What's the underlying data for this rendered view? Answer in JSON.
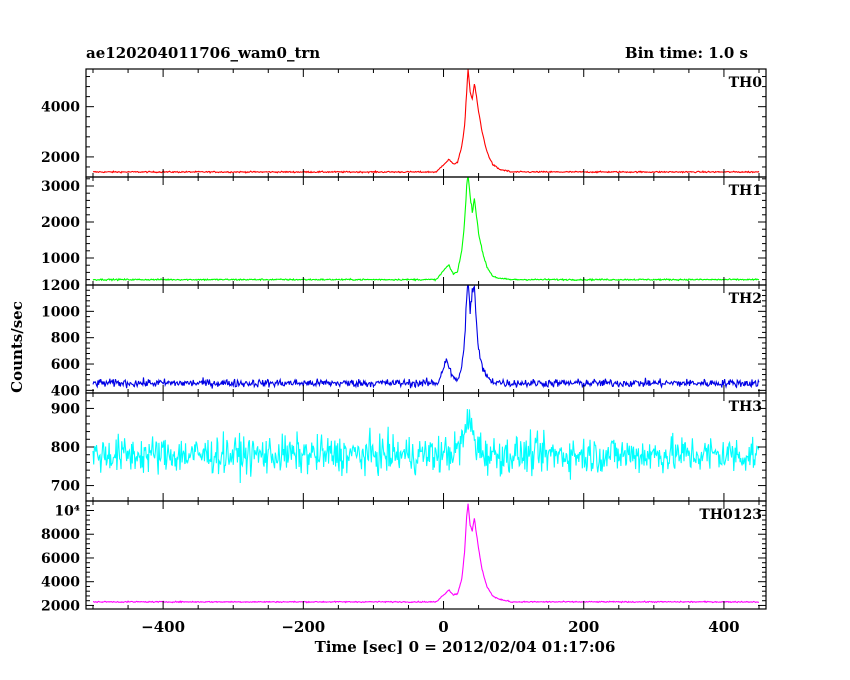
{
  "header": {
    "title": "ae120204011706_wam0_trn",
    "bin_time": "Bin time: 1.0 s"
  },
  "axes": {
    "xlabel": "Time [sec] 0 = 2012/02/04 01:17:06",
    "ylabel": "Counts/sec"
  },
  "chart_data": {
    "type": "line",
    "x_range": [
      -510,
      460
    ],
    "x_ticks": [
      -400,
      -200,
      0,
      200,
      400
    ],
    "x_tick_labels": [
      "−400",
      "−200",
      "0",
      "200",
      "400"
    ],
    "panels": [
      {
        "name": "TH0",
        "color": "#ff0000",
        "ylim": [
          1200,
          5500
        ],
        "yticks": [
          2000,
          4000
        ],
        "ytick_labels": [
          "2000",
          "4000"
        ],
        "baseline": 1400,
        "noise": 20,
        "peak_points": [
          [
            -10,
            1400
          ],
          [
            0,
            1700
          ],
          [
            8,
            1900
          ],
          [
            14,
            1700
          ],
          [
            20,
            1800
          ],
          [
            26,
            2400
          ],
          [
            30,
            3200
          ],
          [
            33,
            4600
          ],
          [
            35,
            5500
          ],
          [
            38,
            4600
          ],
          [
            41,
            4300
          ],
          [
            44,
            4900
          ],
          [
            47,
            4400
          ],
          [
            50,
            3800
          ],
          [
            55,
            3000
          ],
          [
            62,
            2200
          ],
          [
            70,
            1700
          ],
          [
            80,
            1500
          ],
          [
            95,
            1420
          ]
        ]
      },
      {
        "name": "TH1",
        "color": "#00ff00",
        "ylim": [
          250,
          3250
        ],
        "yticks": [
          1000,
          2000,
          3000
        ],
        "ytick_labels": [
          "1000",
          "2000",
          "3000"
        ],
        "baseline": 400,
        "noise": 15,
        "peak_points": [
          [
            -10,
            400
          ],
          [
            0,
            650
          ],
          [
            7,
            800
          ],
          [
            14,
            560
          ],
          [
            20,
            620
          ],
          [
            26,
            1200
          ],
          [
            30,
            2000
          ],
          [
            33,
            3000
          ],
          [
            35,
            3300
          ],
          [
            38,
            2700
          ],
          [
            41,
            2300
          ],
          [
            44,
            2650
          ],
          [
            47,
            2200
          ],
          [
            50,
            1700
          ],
          [
            55,
            1200
          ],
          [
            62,
            750
          ],
          [
            70,
            500
          ],
          [
            80,
            430
          ],
          [
            95,
            405
          ]
        ]
      },
      {
        "name": "TH2",
        "color": "#0000e6",
        "ylim": [
          380,
          1200
        ],
        "yticks": [
          400,
          600,
          800,
          1000,
          1200
        ],
        "ytick_labels": [
          "400",
          "600",
          "800",
          "1000",
          "1200"
        ],
        "baseline": 455,
        "noise": 22,
        "peak_points": [
          [
            -8,
            455
          ],
          [
            0,
            580
          ],
          [
            5,
            640
          ],
          [
            12,
            500
          ],
          [
            20,
            480
          ],
          [
            26,
            560
          ],
          [
            30,
            800
          ],
          [
            33,
            1100
          ],
          [
            35,
            1200
          ],
          [
            38,
            1000
          ],
          [
            41,
            1150
          ],
          [
            44,
            1200
          ],
          [
            47,
            900
          ],
          [
            50,
            700
          ],
          [
            55,
            580
          ],
          [
            62,
            500
          ],
          [
            70,
            470
          ],
          [
            85,
            458
          ]
        ]
      },
      {
        "name": "TH3",
        "color": "#00ffff",
        "ylim": [
          660,
          940
        ],
        "yticks": [
          700,
          800,
          900
        ],
        "ytick_labels": [
          "700",
          "800",
          "900"
        ],
        "baseline": 780,
        "noise": 35,
        "peak_points": [
          [
            -5,
            780
          ],
          [
            20,
            790
          ],
          [
            30,
            830
          ],
          [
            35,
            870
          ],
          [
            40,
            850
          ],
          [
            48,
            800
          ],
          [
            60,
            785
          ]
        ]
      },
      {
        "name": "TH0123",
        "color": "#ff00ff",
        "ylim": [
          1700,
          10800
        ],
        "yticks": [
          2000,
          4000,
          6000,
          8000,
          10000
        ],
        "ytick_labels": [
          "2000",
          "4000",
          "6000",
          "8000",
          "10⁴"
        ],
        "baseline": 2300,
        "noise": 35,
        "peak_points": [
          [
            -10,
            2300
          ],
          [
            0,
            2900
          ],
          [
            8,
            3300
          ],
          [
            14,
            2900
          ],
          [
            20,
            3000
          ],
          [
            26,
            4200
          ],
          [
            30,
            6500
          ],
          [
            33,
            9500
          ],
          [
            35,
            10600
          ],
          [
            38,
            8800
          ],
          [
            41,
            8300
          ],
          [
            44,
            9300
          ],
          [
            47,
            8000
          ],
          [
            50,
            6800
          ],
          [
            55,
            5000
          ],
          [
            62,
            3600
          ],
          [
            70,
            2800
          ],
          [
            80,
            2500
          ],
          [
            95,
            2350
          ]
        ]
      }
    ]
  }
}
